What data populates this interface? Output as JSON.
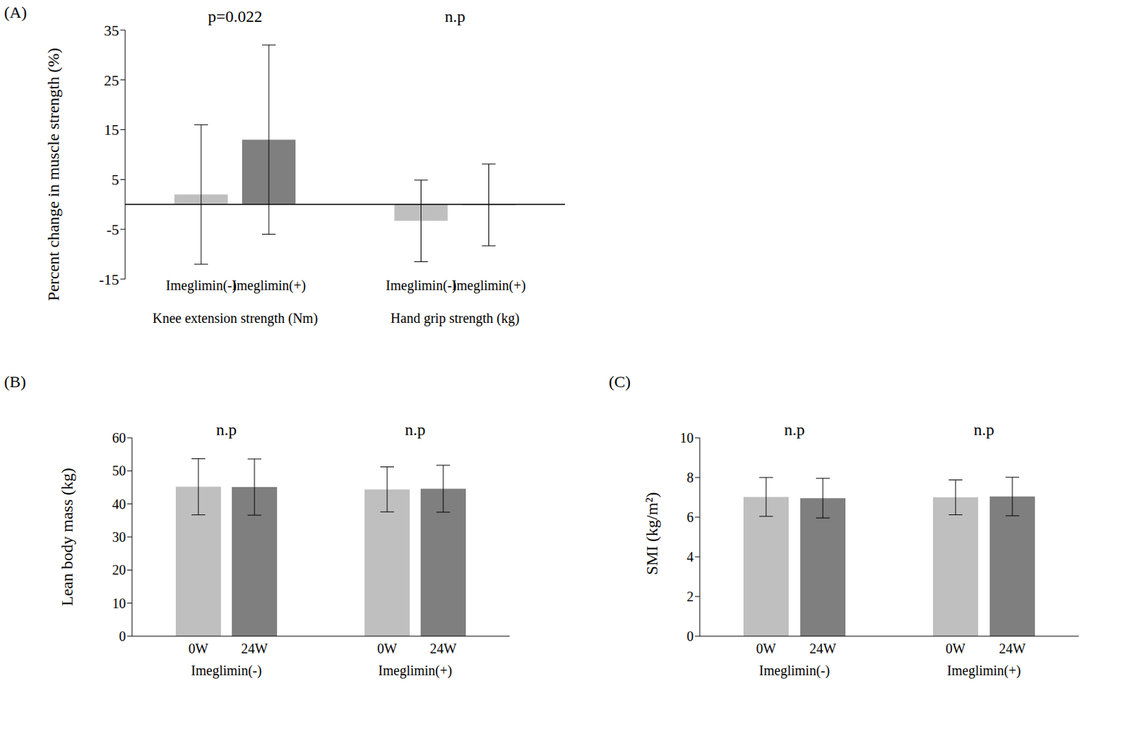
{
  "chart_data": [
    {
      "type": "bar",
      "panel": "(A)",
      "y_label": "Percent change in muscle strength (%)",
      "categories": [
        "Knee extension strength (Nm)",
        "Hand grip strength (kg)"
      ],
      "series": [
        {
          "name": "Imeglimin(-)",
          "color": "#bfbfbf",
          "values": [
            2,
            -3.3
          ],
          "errors": [
            14,
            8.2
          ]
        },
        {
          "name": "Imeglimin(+)",
          "color": "#7f7f7f",
          "values": [
            13,
            -0.1
          ],
          "errors": [
            19,
            8.2
          ]
        }
      ],
      "annotations": [
        "p=0.022",
        "n.p"
      ],
      "ylim": [
        -15,
        35
      ],
      "yticks": [
        -15,
        -5,
        5,
        15,
        25,
        35
      ]
    },
    {
      "type": "bar",
      "panel": "(B)",
      "y_label": "Lean body mass (kg)",
      "categories": [
        "Imeglimin(-)",
        "Imeglimin(+)"
      ],
      "series": [
        {
          "name": "0W",
          "color": "#bfbfbf",
          "values": [
            45.2,
            44.4
          ],
          "errors": [
            8.5,
            6.8
          ]
        },
        {
          "name": "24W",
          "color": "#7f7f7f",
          "values": [
            45.1,
            44.6
          ],
          "errors": [
            8.5,
            7.1
          ]
        }
      ],
      "annotations": [
        "n.p",
        "n.p"
      ],
      "ylim": [
        0,
        60
      ],
      "yticks": [
        0,
        10,
        20,
        30,
        40,
        50,
        60
      ]
    },
    {
      "type": "bar",
      "panel": "(C)",
      "y_label": "SMI (kg/m²)",
      "categories": [
        "Imeglimin(-)",
        "Imeglimin(+)"
      ],
      "series": [
        {
          "name": "0W",
          "color": "#bfbfbf",
          "values": [
            7.02,
            7.0
          ],
          "errors": [
            0.98,
            0.88
          ]
        },
        {
          "name": "24W",
          "color": "#7f7f7f",
          "values": [
            6.96,
            7.04
          ],
          "errors": [
            1.0,
            0.97
          ]
        }
      ],
      "annotations": [
        "n.p",
        "n.p"
      ],
      "ylim": [
        0,
        10
      ],
      "yticks": [
        0,
        2,
        4,
        6,
        8,
        10
      ]
    }
  ]
}
